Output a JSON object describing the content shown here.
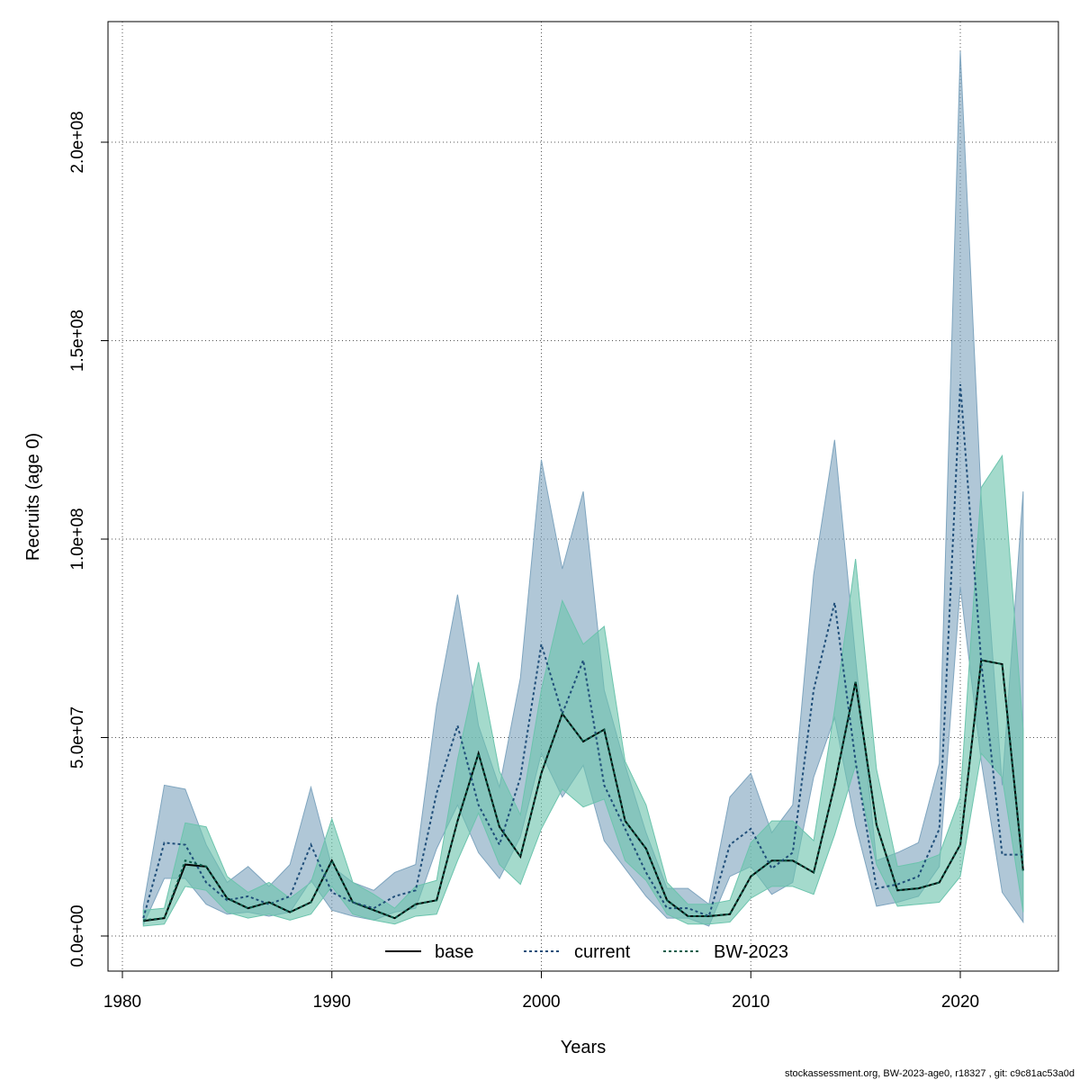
{
  "chart_data": {
    "type": "area",
    "xlabel": "Years",
    "ylabel": "Recruits (age 0)",
    "xlim": [
      1980,
      2023
    ],
    "ylim": [
      0,
      225000000
    ],
    "grid": true,
    "legend_position": "bottom",
    "x_ticks": [
      1980,
      1990,
      2000,
      2010,
      2020
    ],
    "x_tick_labels": [
      "1980",
      "1990",
      "2000",
      "2010",
      "2020"
    ],
    "y_ticks": [
      0,
      50000000,
      100000000,
      150000000,
      200000000
    ],
    "y_tick_labels": [
      "0.0e+00",
      "5.0e+07",
      "1.0e+08",
      "1.5e+08",
      "2.0e+08"
    ],
    "x": [
      1981,
      1982,
      1983,
      1984,
      1985,
      1986,
      1987,
      1988,
      1989,
      1990,
      1991,
      1992,
      1993,
      1994,
      1995,
      1996,
      1997,
      1998,
      1999,
      2000,
      2001,
      2002,
      2003,
      2004,
      2005,
      2006,
      2007,
      2008,
      2009,
      2010,
      2011,
      2012,
      2013,
      2014,
      2015,
      2016,
      2017,
      2018,
      2019,
      2020,
      2021,
      2022,
      2023
    ],
    "series": [
      {
        "name": "base",
        "color": "#000000",
        "line": "solid",
        "values": [
          3800000,
          4500000,
          18000000,
          17500000,
          9500000,
          7000000,
          8500000,
          6000000,
          8500000,
          19000000,
          8500000,
          6500000,
          4500000,
          8000000,
          9000000,
          29000000,
          46000000,
          27500000,
          20000000,
          41000000,
          56000000,
          49000000,
          52000000,
          29000000,
          22000000,
          9000000,
          5000000,
          5000000,
          5500000,
          15000000,
          19000000,
          19000000,
          16000000,
          38000000,
          64000000,
          28000000,
          11500000,
          12000000,
          13500000,
          23000000,
          69500000,
          68500000,
          16500000
        ]
      },
      {
        "name": "current",
        "color": "#1f4e79",
        "line": "dashed",
        "band_color": "#7fa5bf",
        "values": [
          4500000,
          23500000,
          23000000,
          13500000,
          9000000,
          10000000,
          8000000,
          10000000,
          23000000,
          11000000,
          8500000,
          7000000,
          10000000,
          11500000,
          36000000,
          53000000,
          33000000,
          23000000,
          40000000,
          73500000,
          56000000,
          69500000,
          38000000,
          27000000,
          16000000,
          7000000,
          7000000,
          5000000,
          23000000,
          27000000,
          17000000,
          21000000,
          62000000,
          84000000,
          44000000,
          12000000,
          13000000,
          15000000,
          27000000,
          139000000,
          69000000,
          20500000,
          20500000
        ],
        "lower": [
          2800000,
          14500000,
          14500000,
          8000000,
          5500000,
          6000000,
          5000000,
          6000000,
          14000000,
          6500000,
          5000000,
          4000000,
          6000000,
          7000000,
          22000000,
          33000000,
          21000000,
          14500000,
          25000000,
          46000000,
          35000000,
          43000000,
          24000000,
          17000000,
          10000000,
          4500000,
          4500000,
          2500000,
          15000000,
          17500000,
          10500000,
          13500000,
          40000000,
          55000000,
          28000000,
          7500000,
          8500000,
          10000000,
          17500000,
          88000000,
          44000000,
          11000000,
          3500000
        ],
        "upper": [
          7500000,
          38000000,
          37000000,
          23000000,
          13500000,
          17500000,
          12500000,
          18000000,
          37500000,
          17500000,
          13500000,
          11500000,
          16000000,
          18000000,
          58000000,
          86000000,
          53000000,
          37500000,
          65000000,
          120000000,
          92500000,
          112000000,
          62000000,
          43000000,
          26000000,
          12000000,
          12000000,
          8000000,
          35000000,
          41000000,
          26000000,
          33000000,
          91000000,
          125000000,
          70000000,
          19000000,
          21000000,
          23500000,
          43500000,
          223000000,
          110000000,
          38000000,
          112000000
        ]
      },
      {
        "name": "BW-2023",
        "color": "#0b5d4a",
        "line": "dashed",
        "band_color": "#6cc4ad",
        "values": [
          4000000,
          4500000,
          19000000,
          17500000,
          9500000,
          7000000,
          8500000,
          6000000,
          8500000,
          19000000,
          8500000,
          6500000,
          4500000,
          8000000,
          9000000,
          29000000,
          46000000,
          27500000,
          20000000,
          41000000,
          56000000,
          49000000,
          52000000,
          29000000,
          22000000,
          9000000,
          5000000,
          5000000,
          5500000,
          15000000,
          19000000,
          19000000,
          16000000,
          38000000,
          64000000,
          28000000,
          11500000,
          12000000,
          13500000,
          23000000,
          69500000,
          68500000,
          16500000
        ],
        "lower": [
          2500000,
          3000000,
          12500000,
          11500000,
          6000000,
          4500000,
          5500000,
          4000000,
          5500000,
          12500000,
          5500000,
          4000000,
          3000000,
          5000000,
          5500000,
          19000000,
          31000000,
          18000000,
          13000000,
          27000000,
          37000000,
          32500000,
          34500000,
          19000000,
          14000000,
          5500000,
          3000000,
          3000000,
          3500000,
          9500000,
          12500000,
          12500000,
          10500000,
          25500000,
          43000000,
          18000000,
          7500000,
          8000000,
          8500000,
          15000000,
          46000000,
          40000000,
          6000000
        ],
        "upper": [
          6500000,
          7000000,
          28500000,
          27500000,
          15000000,
          11000000,
          13500000,
          9500000,
          13500000,
          29500000,
          13500000,
          10500000,
          7000000,
          12500000,
          14000000,
          44500000,
          69000000,
          41500000,
          30500000,
          62000000,
          84500000,
          73500000,
          78000000,
          44000000,
          33000000,
          13500000,
          8000000,
          8000000,
          9000000,
          23500000,
          29000000,
          29000000,
          24000000,
          57000000,
          95000000,
          42000000,
          17500000,
          18500000,
          20500000,
          35000000,
          113000000,
          121000000,
          52000000
        ]
      }
    ]
  },
  "footer": "stockassessment.org, BW-2023-age0, r18327 , git: c9c81ac53a0d"
}
